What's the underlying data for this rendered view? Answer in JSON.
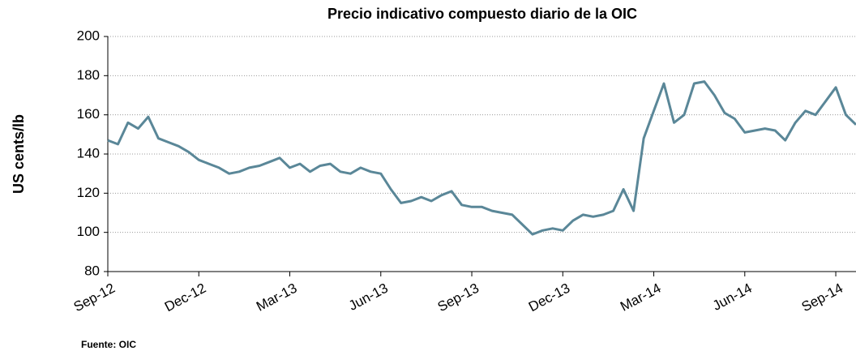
{
  "chart_data": {
    "type": "line",
    "title": "Precio indicativo compuesto diario de la OIC",
    "y_label": "US cents/lb",
    "source": "Fuente: OIC",
    "categories": [
      "Sep-12",
      null,
      null,
      null,
      null,
      null,
      null,
      null,
      null,
      "Dec-12",
      null,
      null,
      null,
      null,
      null,
      null,
      null,
      null,
      "Mar-13",
      null,
      null,
      null,
      null,
      null,
      null,
      null,
      null,
      "Jun-13",
      null,
      null,
      null,
      null,
      null,
      null,
      null,
      null,
      "Sep-13",
      null,
      null,
      null,
      null,
      null,
      null,
      null,
      null,
      "Dec-13",
      null,
      null,
      null,
      null,
      null,
      null,
      null,
      null,
      "Mar-14",
      null,
      null,
      null,
      null,
      null,
      null,
      null,
      null,
      "Jun-14",
      null,
      null,
      null,
      null,
      null,
      null,
      null,
      null,
      "Sep-14",
      null,
      null
    ],
    "series": [
      {
        "name": "Precio indicativo compuesto",
        "color": "#5a8798",
        "values": [
          147,
          145,
          156,
          153,
          159,
          148,
          146,
          144,
          141,
          137,
          135,
          133,
          130,
          131,
          133,
          134,
          136,
          138,
          133,
          135,
          131,
          134,
          135,
          131,
          130,
          133,
          131,
          130,
          122,
          115,
          116,
          118,
          116,
          119,
          121,
          114,
          113,
          113,
          111,
          110,
          109,
          104,
          99,
          101,
          102,
          101,
          106,
          109,
          108,
          109,
          111,
          122,
          111,
          148,
          162,
          176,
          156,
          160,
          176,
          177,
          170,
          161,
          158,
          151,
          152,
          153,
          152,
          147,
          156,
          162,
          160,
          167,
          174,
          160,
          155
        ]
      }
    ],
    "ylim": [
      80,
      200
    ],
    "yticks": [
      80,
      100,
      120,
      140,
      160,
      180,
      200
    ],
    "grid": true
  }
}
